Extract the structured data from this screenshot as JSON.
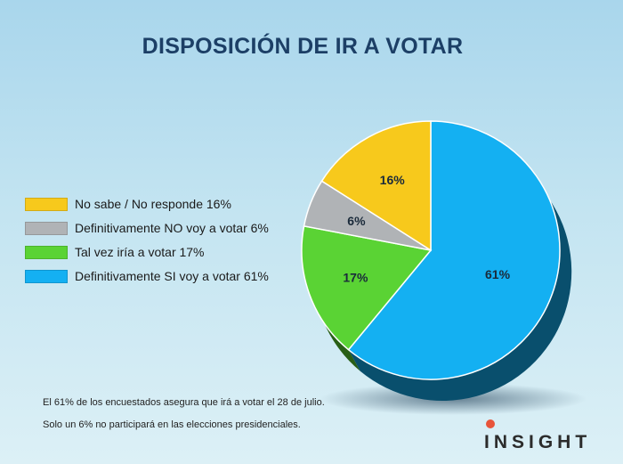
{
  "title": "DISPOSICIÓN DE IR A VOTAR",
  "legend": [
    {
      "label": "No sabe / No responde 16%",
      "color": "#f7c91c"
    },
    {
      "label": "Definitivamente NO voy a votar 6%",
      "color": "#b0b3b6"
    },
    {
      "label": "Tal vez iría a votar 17%",
      "color": "#5ad334"
    },
    {
      "label": "Definitivamente SI voy a votar 61%",
      "color": "#14b0f2"
    }
  ],
  "chart_data": {
    "type": "pie",
    "categories": [
      "No sabe / No responde",
      "Definitivamente NO voy a votar",
      "Tal vez iría a votar",
      "Definitivamente SI voy a votar"
    ],
    "values": [
      16,
      6,
      17,
      61
    ],
    "data_labels": [
      "16%",
      "6%",
      "17%",
      "61%"
    ],
    "colors": [
      "#f7c91c",
      "#b0b3b6",
      "#5ad334",
      "#14b0f2"
    ],
    "unit": "%",
    "legend_position": "left"
  },
  "footnotes": [
    "El 61% de los encuestados asegura que irá a votar el 28 de julio.",
    "Solo un 6% no participará en las elecciones presidenciales."
  ],
  "brand": "INSIGHT"
}
